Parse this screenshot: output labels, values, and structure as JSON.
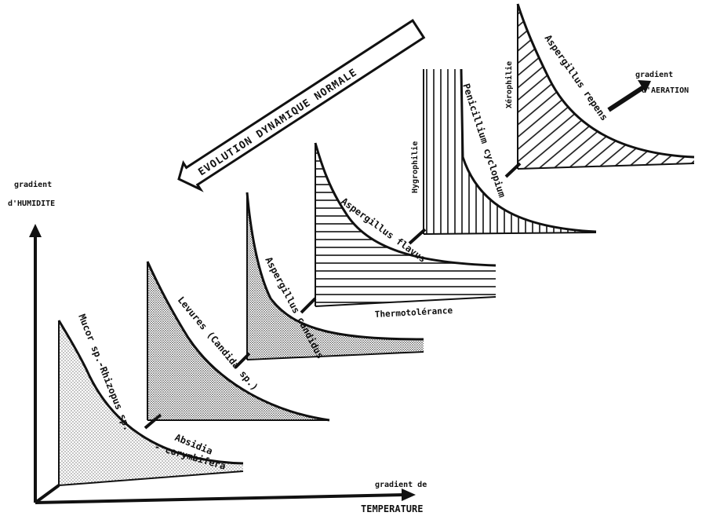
{
  "axes": {
    "y_label_line1": "gradient",
    "y_label_line2": "d'HUMIDITE",
    "x_label_line1": "gradient de",
    "x_label_line2": "TEMPERATURE"
  },
  "banner": {
    "text": "EVOLUTION DYNAMIQUE NORMALE"
  },
  "aeration": {
    "line1": "gradient",
    "line2": "d'AERATION"
  },
  "panels": [
    {
      "id": "mucor",
      "pattern": "dots-light",
      "labels": [
        "Mucor sp.-Rhizopus sp.",
        "Absidia",
        "- corymbifera"
      ]
    },
    {
      "id": "levures",
      "pattern": "dots-dense",
      "labels": [
        "Levures (Candida sp.)"
      ]
    },
    {
      "id": "candidus",
      "pattern": "dots-dense",
      "labels": [
        "Aspergillus candidus"
      ]
    },
    {
      "id": "flavus",
      "pattern": "horizontal",
      "labels": [
        "Aspergillus flavus"
      ],
      "side_label": "Thermotolérance"
    },
    {
      "id": "cyclopium",
      "pattern": "vertical",
      "labels": [
        "Penicillium cyclopium"
      ],
      "side_label": "Hygrophilie"
    },
    {
      "id": "repens",
      "pattern": "diagonal",
      "labels": [
        "Aspergillus repens"
      ],
      "side_label": "Xérophilie"
    }
  ]
}
